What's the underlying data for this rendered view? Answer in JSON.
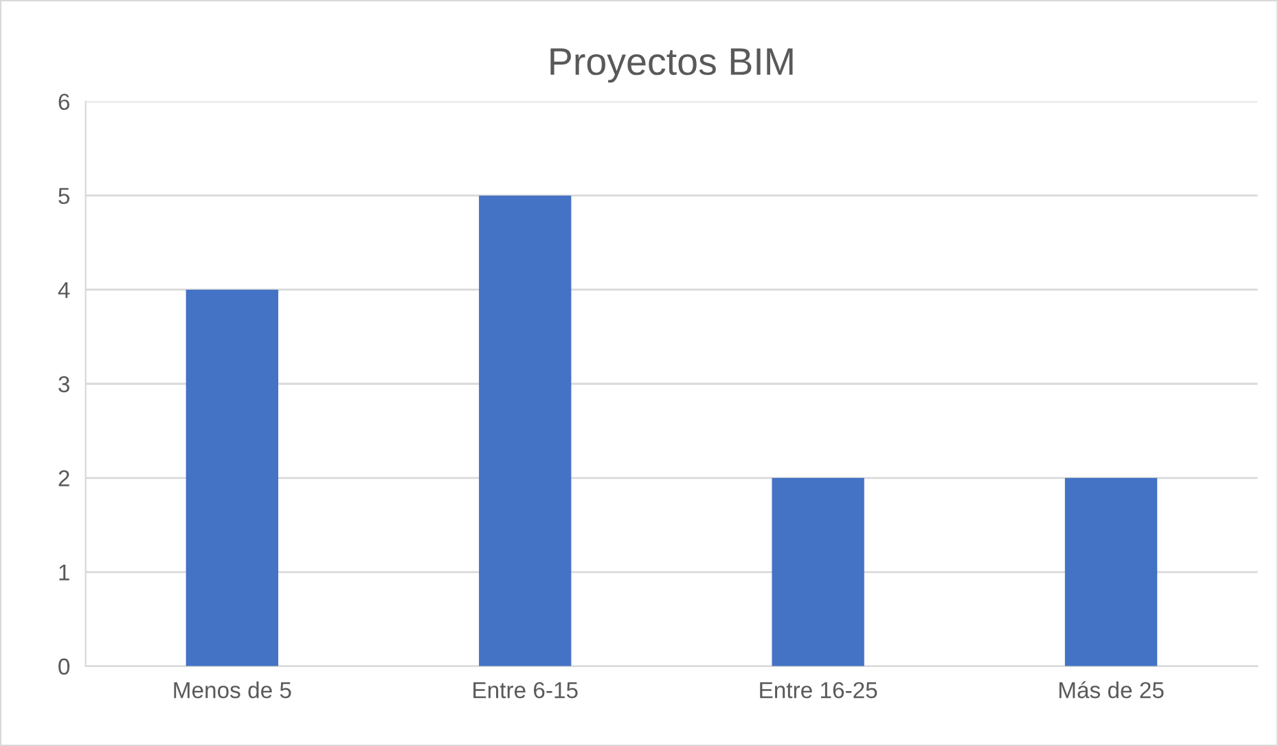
{
  "chart_data": {
    "type": "bar",
    "title": "Proyectos BIM",
    "categories": [
      "Menos de 5",
      "Entre 6-15",
      "Entre 16-25",
      "Más de 25"
    ],
    "values": [
      4,
      5,
      2,
      2
    ],
    "color": "#4472c4",
    "ylim": [
      0,
      6
    ],
    "yticks": [
      0,
      1,
      2,
      3,
      4,
      5,
      6
    ],
    "grid": "y",
    "legend": false
  }
}
